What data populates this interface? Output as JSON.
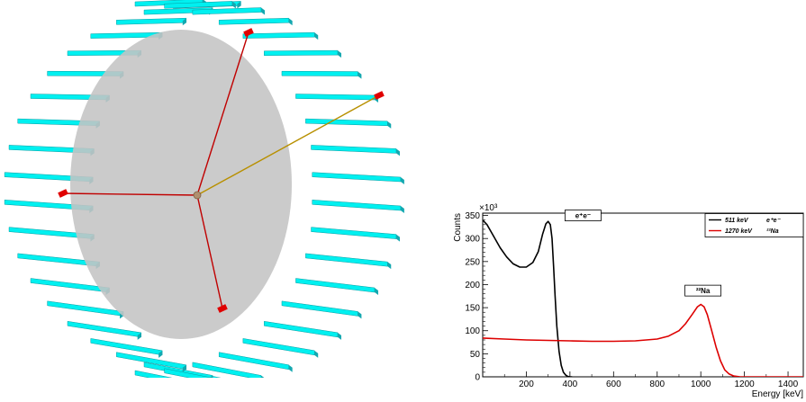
{
  "colors": {
    "crystal_top": "#00f0f0",
    "crystal_side": "#14a8b0",
    "disk": "#c4c4c4",
    "track_red": "#c00000",
    "track_gold": "#b89000",
    "hit": "#e00000",
    "series_511": "#000000",
    "series_1270": "#dd0000"
  },
  "chart_data": {
    "type": "line",
    "title": "",
    "xlabel": "Energy [keV]",
    "ylabel": "Counts",
    "y_multiplier": "×10³",
    "xlim": [
      0,
      1470
    ],
    "ylim": [
      0,
      355
    ],
    "x_ticks": [
      200,
      400,
      600,
      800,
      1000,
      1200,
      1400
    ],
    "y_ticks": [
      0,
      50,
      100,
      150,
      200,
      250,
      300,
      350
    ],
    "legend_position": "top-right",
    "legend": [
      {
        "label": "511 keV",
        "tag": "e⁺e⁻"
      },
      {
        "label": "1270 keV",
        "tag": "²²Na"
      }
    ],
    "annotations": [
      {
        "text": "e⁺e⁻",
        "x": 460,
        "y": 350
      },
      {
        "text": "²²Na",
        "x": 1010,
        "y": 187
      }
    ],
    "series": [
      {
        "name": "511 keV e⁺e⁻",
        "color": "#000000",
        "x": [
          0,
          20,
          50,
          80,
          110,
          140,
          170,
          200,
          230,
          255,
          275,
          290,
          300,
          310,
          318,
          325,
          332,
          340,
          350,
          360,
          370,
          380,
          390,
          400,
          410
        ],
        "y": [
          340,
          330,
          305,
          280,
          260,
          245,
          238,
          238,
          248,
          272,
          310,
          332,
          337,
          330,
          300,
          240,
          175,
          110,
          55,
          25,
          10,
          4,
          1,
          0,
          0
        ]
      },
      {
        "name": "1270 keV ²²Na",
        "color": "#dd0000",
        "x": [
          0,
          100,
          200,
          300,
          400,
          500,
          600,
          700,
          800,
          850,
          900,
          930,
          960,
          985,
          1000,
          1015,
          1030,
          1050,
          1070,
          1090,
          1110,
          1130,
          1150,
          1180,
          1250,
          1350,
          1470
        ],
        "y": [
          84,
          82,
          80,
          79,
          78,
          77,
          77,
          78,
          82,
          88,
          100,
          115,
          135,
          152,
          157,
          152,
          135,
          100,
          65,
          35,
          15,
          6,
          2,
          0,
          0,
          0,
          0
        ]
      }
    ]
  }
}
